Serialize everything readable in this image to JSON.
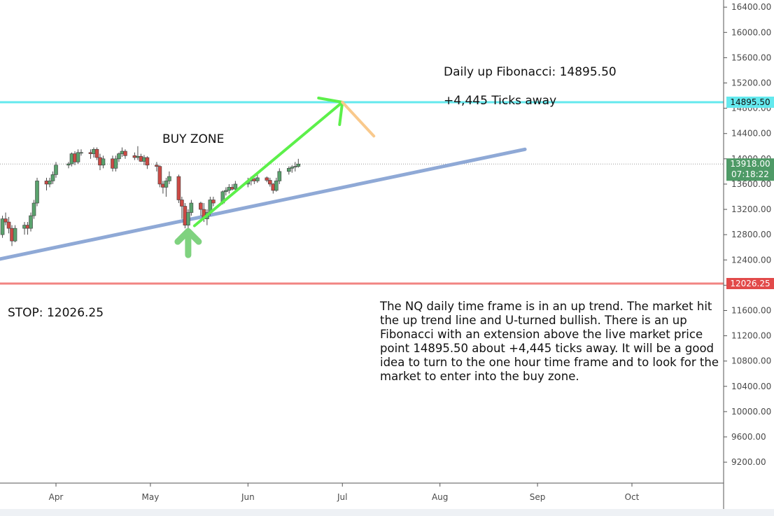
{
  "chart_data": {
    "type": "candlestick",
    "instrument": "NQ",
    "timeframe": "daily",
    "ylim": [
      8850,
      16600
    ],
    "y_ticks": [
      16400,
      16000,
      15600,
      15200,
      14800,
      14400,
      14000,
      13600,
      13200,
      12800,
      12400,
      12000,
      11600,
      11200,
      10800,
      10400,
      10000,
      9600,
      9200
    ],
    "y_tick_labels": [
      "16400.00",
      "16000.00",
      "15600.00",
      "15200.00",
      "14800.00",
      "14400.00",
      "14000.00",
      "13600.00",
      "13200.00",
      "12800.00",
      "12400.00",
      "12000.00",
      "11600.00",
      "11200.00",
      "10800.00",
      "10400.00",
      "10000.00",
      "9600.00",
      "9200.00"
    ],
    "x_start": "2021-03-08",
    "x_end": "2021-10-31",
    "x_ticks": [
      {
        "date": "2021-04-01",
        "label": "Apr"
      },
      {
        "date": "2021-05-01",
        "label": "May"
      },
      {
        "date": "2021-06-01",
        "label": "Jun"
      },
      {
        "date": "2021-07-01",
        "label": "Jul"
      },
      {
        "date": "2021-08-01",
        "label": "Aug"
      },
      {
        "date": "2021-09-01",
        "label": "Sep"
      },
      {
        "date": "2021-10-01",
        "label": "Oct"
      }
    ],
    "candles": [
      {
        "date": "2021-03-08",
        "o": 12600,
        "h": 13250,
        "l": 12500,
        "c": 13150
      },
      {
        "date": "2021-03-09",
        "o": 13150,
        "h": 13300,
        "l": 12950,
        "c": 13100
      },
      {
        "date": "2021-03-10",
        "o": 13100,
        "h": 13250,
        "l": 12900,
        "c": 13200
      },
      {
        "date": "2021-03-11",
        "o": 13200,
        "h": 13300,
        "l": 13000,
        "c": 13100
      },
      {
        "date": "2021-03-12",
        "o": 13100,
        "h": 13180,
        "l": 12700,
        "c": 12800
      },
      {
        "date": "2021-03-15",
        "o": 12800,
        "h": 13100,
        "l": 12750,
        "c": 13050
      },
      {
        "date": "2021-03-16",
        "o": 13050,
        "h": 13150,
        "l": 12950,
        "c": 13000
      },
      {
        "date": "2021-03-17",
        "o": 13000,
        "h": 13080,
        "l": 12820,
        "c": 12900
      },
      {
        "date": "2021-03-18",
        "o": 12900,
        "h": 12950,
        "l": 12620,
        "c": 12700
      },
      {
        "date": "2021-03-19",
        "o": 12700,
        "h": 12950,
        "l": 12680,
        "c": 12900
      },
      {
        "date": "2021-03-22",
        "o": 12900,
        "h": 13000,
        "l": 12800,
        "c": 12950
      },
      {
        "date": "2021-03-23",
        "o": 12950,
        "h": 13000,
        "l": 12800,
        "c": 12900
      },
      {
        "date": "2021-03-24",
        "o": 12900,
        "h": 13150,
        "l": 12850,
        "c": 13100
      },
      {
        "date": "2021-03-25",
        "o": 13100,
        "h": 13350,
        "l": 13050,
        "c": 13300
      },
      {
        "date": "2021-03-26",
        "o": 13300,
        "h": 13700,
        "l": 13250,
        "c": 13650
      },
      {
        "date": "2021-03-29",
        "o": 13650,
        "h": 13700,
        "l": 13500,
        "c": 13600
      },
      {
        "date": "2021-03-30",
        "o": 13600,
        "h": 13700,
        "l": 13550,
        "c": 13650
      },
      {
        "date": "2021-03-31",
        "o": 13650,
        "h": 13800,
        "l": 13600,
        "c": 13750
      },
      {
        "date": "2021-04-01",
        "o": 13750,
        "h": 13950,
        "l": 13700,
        "c": 13900
      },
      {
        "date": "2021-04-05",
        "o": 13900,
        "h": 13950,
        "l": 13850,
        "c": 13920
      },
      {
        "date": "2021-04-06",
        "o": 13920,
        "h": 14100,
        "l": 13880,
        "c": 14080
      },
      {
        "date": "2021-04-07",
        "o": 14080,
        "h": 14120,
        "l": 13900,
        "c": 13950
      },
      {
        "date": "2021-04-08",
        "o": 13950,
        "h": 14150,
        "l": 13920,
        "c": 14100
      },
      {
        "date": "2021-04-09",
        "o": 14100,
        "h": 14150,
        "l": 14050,
        "c": 14100
      },
      {
        "date": "2021-04-12",
        "o": 14100,
        "h": 14150,
        "l": 14000,
        "c": 14080
      },
      {
        "date": "2021-04-13",
        "o": 14080,
        "h": 14180,
        "l": 14020,
        "c": 14150
      },
      {
        "date": "2021-04-14",
        "o": 14150,
        "h": 14180,
        "l": 13980,
        "c": 14020
      },
      {
        "date": "2021-04-15",
        "o": 14020,
        "h": 14080,
        "l": 13820,
        "c": 13900
      },
      {
        "date": "2021-04-16",
        "o": 13900,
        "h": 14050,
        "l": 13850,
        "c": 14000
      },
      {
        "date": "2021-04-19",
        "o": 14000,
        "h": 14050,
        "l": 13800,
        "c": 13850
      },
      {
        "date": "2021-04-20",
        "o": 13850,
        "h": 14050,
        "l": 13800,
        "c": 14000
      },
      {
        "date": "2021-04-21",
        "o": 14000,
        "h": 14100,
        "l": 13950,
        "c": 14080
      },
      {
        "date": "2021-04-22",
        "o": 14080,
        "h": 14180,
        "l": 14030,
        "c": 14120
      },
      {
        "date": "2021-04-23",
        "o": 14120,
        "h": 14150,
        "l": 14000,
        "c": 14050
      },
      {
        "date": "2021-04-26",
        "o": 14050,
        "h": 14100,
        "l": 13980,
        "c": 14020
      },
      {
        "date": "2021-04-27",
        "o": 14020,
        "h": 14200,
        "l": 13980,
        "c": 14040
      },
      {
        "date": "2021-04-28",
        "o": 14040,
        "h": 14080,
        "l": 13950,
        "c": 13960
      },
      {
        "date": "2021-04-29",
        "o": 13960,
        "h": 14060,
        "l": 13900,
        "c": 14020
      },
      {
        "date": "2021-04-30",
        "o": 14020,
        "h": 14040,
        "l": 13840,
        "c": 13900
      },
      {
        "date": "2021-05-03",
        "o": 13900,
        "h": 13950,
        "l": 13800,
        "c": 13880
      },
      {
        "date": "2021-05-04",
        "o": 13880,
        "h": 13900,
        "l": 13550,
        "c": 13600
      },
      {
        "date": "2021-05-05",
        "o": 13600,
        "h": 13650,
        "l": 13450,
        "c": 13550
      },
      {
        "date": "2021-05-06",
        "o": 13550,
        "h": 13700,
        "l": 13400,
        "c": 13650
      },
      {
        "date": "2021-05-07",
        "o": 13650,
        "h": 13800,
        "l": 13600,
        "c": 13720
      },
      {
        "date": "2021-05-10",
        "o": 13720,
        "h": 13750,
        "l": 13300,
        "c": 13350
      },
      {
        "date": "2021-05-11",
        "o": 13350,
        "h": 13400,
        "l": 13050,
        "c": 13250
      },
      {
        "date": "2021-05-12",
        "o": 13250,
        "h": 13300,
        "l": 12900,
        "c": 12950
      },
      {
        "date": "2021-05-13",
        "o": 12950,
        "h": 13200,
        "l": 12900,
        "c": 13150
      },
      {
        "date": "2021-05-14",
        "o": 13150,
        "h": 13350,
        "l": 13100,
        "c": 13300
      },
      {
        "date": "2021-05-17",
        "o": 13300,
        "h": 13320,
        "l": 13100,
        "c": 13200
      },
      {
        "date": "2021-05-18",
        "o": 13200,
        "h": 13300,
        "l": 13000,
        "c": 13050
      },
      {
        "date": "2021-05-19",
        "o": 13050,
        "h": 13200,
        "l": 12950,
        "c": 13150
      },
      {
        "date": "2021-05-20",
        "o": 13150,
        "h": 13400,
        "l": 13100,
        "c": 13350
      },
      {
        "date": "2021-05-21",
        "o": 13350,
        "h": 13400,
        "l": 13250,
        "c": 13300
      },
      {
        "date": "2021-05-24",
        "o": 13300,
        "h": 13500,
        "l": 13280,
        "c": 13480
      },
      {
        "date": "2021-05-25",
        "o": 13480,
        "h": 13550,
        "l": 13420,
        "c": 13500
      },
      {
        "date": "2021-05-26",
        "o": 13500,
        "h": 13600,
        "l": 13450,
        "c": 13550
      },
      {
        "date": "2021-05-27",
        "o": 13550,
        "h": 13600,
        "l": 13500,
        "c": 13520
      },
      {
        "date": "2021-05-28",
        "o": 13520,
        "h": 13650,
        "l": 13500,
        "c": 13600
      },
      {
        "date": "2021-06-01",
        "o": 13600,
        "h": 13700,
        "l": 13550,
        "c": 13650
      },
      {
        "date": "2021-06-02",
        "o": 13650,
        "h": 13720,
        "l": 13580,
        "c": 13680
      },
      {
        "date": "2021-06-03",
        "o": 13680,
        "h": 13700,
        "l": 13600,
        "c": 13650
      },
      {
        "date": "2021-06-04",
        "o": 13650,
        "h": 13760,
        "l": 13620,
        "c": 13700
      },
      {
        "date": "2021-06-07",
        "o": 13700,
        "h": 13720,
        "l": 13630,
        "c": 13660
      },
      {
        "date": "2021-06-08",
        "o": 13660,
        "h": 13700,
        "l": 13560,
        "c": 13600
      },
      {
        "date": "2021-06-09",
        "o": 13600,
        "h": 13620,
        "l": 13450,
        "c": 13500
      },
      {
        "date": "2021-06-10",
        "o": 13500,
        "h": 13700,
        "l": 13480,
        "c": 13650
      },
      {
        "date": "2021-06-11",
        "o": 13650,
        "h": 13850,
        "l": 13600,
        "c": 13800
      },
      {
        "date": "2021-06-14",
        "o": 13800,
        "h": 13880,
        "l": 13750,
        "c": 13850
      },
      {
        "date": "2021-06-15",
        "o": 13850,
        "h": 13900,
        "l": 13780,
        "c": 13870
      },
      {
        "date": "2021-06-16",
        "o": 13870,
        "h": 13950,
        "l": 13800,
        "c": 13880
      },
      {
        "date": "2021-06-17",
        "o": 13880,
        "h": 14000,
        "l": 13860,
        "c": 13918
      }
    ],
    "horizontal_levels": [
      {
        "value": 14895.5,
        "label": "14895.50",
        "color": "#64e9ee"
      },
      {
        "value": 12026.25,
        "label": "12026.25",
        "color": "#f28482"
      }
    ],
    "last_price": {
      "value": 13918.0,
      "label": "13918.00",
      "countdown": "07:18:22",
      "color": "#4e9a66"
    },
    "trend_line": {
      "from": {
        "date": "2021-03-08",
        "value": 12350
      },
      "to": {
        "date": "2021-08-28",
        "value": 14150
      },
      "color": "#8fa9d6"
    },
    "projection_up": {
      "from": {
        "date": "2021-05-15",
        "value": 12940
      },
      "to": {
        "date": "2021-07-01",
        "value": 14895.5
      },
      "color": "#5cf04a"
    },
    "projection_down": {
      "from": {
        "date": "2021-07-01",
        "value": 14895.5
      },
      "to": {
        "date": "2021-07-11",
        "value": 14360
      },
      "color": "#f9c98c"
    },
    "signal_arrow": {
      "date": "2021-05-13",
      "value": 12700,
      "direction": "up",
      "color": "#7fd27f"
    },
    "colors": {
      "bull": "#5aa26d",
      "bear": "#cc4a45",
      "wick": "#4a4a4a",
      "axis_border": "#555555",
      "grid_dots": "#9a9a9a"
    }
  },
  "annotations": {
    "fib_label": "Daily up Fibonacci: 14895.50",
    "ticks_away": "+4,445 Ticks away",
    "buy_zone": "BUY ZONE",
    "stop": "STOP: 12026.25",
    "description": "The NQ daily time frame is in an up trend. The market hit the up trend line and U-turned  bullish. There is an up Fibonacci with an extension above the live market price point 14895.50 about +4,445 ticks away. It will be a good idea to turn to the one hour time frame and to look for the market to enter into the buy zone."
  }
}
